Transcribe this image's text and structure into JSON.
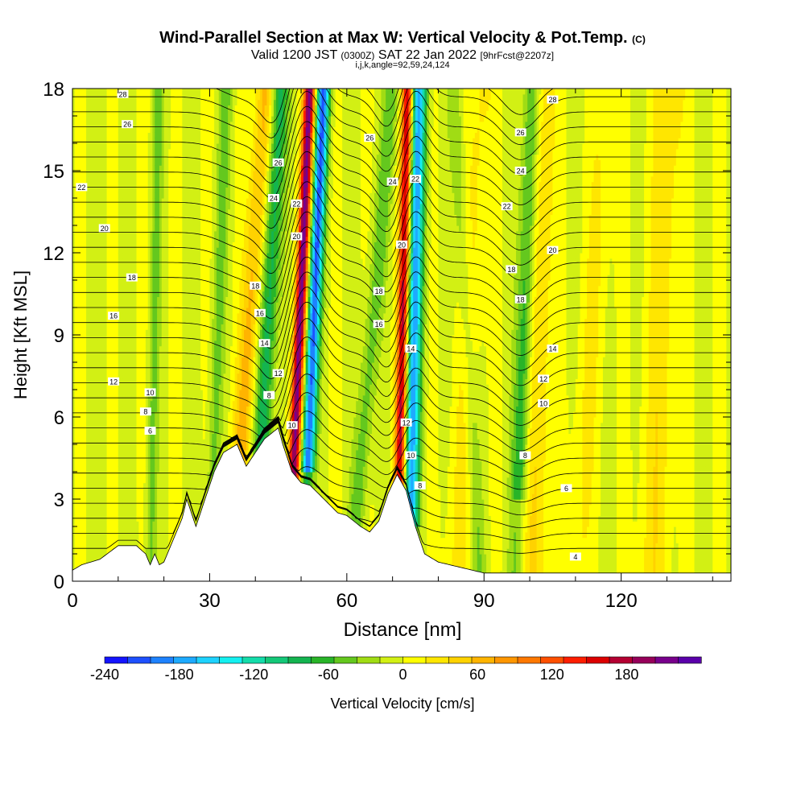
{
  "header": {
    "title": "Wind-Parallel Section at Max W: Vertical Velocity & Pot.Temp.",
    "copyright": "(C)",
    "valid_prefix": "Valid 1200 JST",
    "valid_utc": "(0300Z)",
    "valid_suffix": "SAT 22 Jan 2022",
    "forecast": "[9hrFcst@2207z]",
    "indices": "i,j,k,angle=92,59,24,124"
  },
  "chart_data": {
    "type": "heatmap",
    "xlabel": "Distance [nm]",
    "ylabel": "Height [Kft MSL]",
    "xlim": [
      0,
      144
    ],
    "ylim": [
      0,
      18
    ],
    "x_ticks": [
      0,
      30,
      60,
      90,
      120
    ],
    "y_ticks": [
      0,
      3,
      6,
      9,
      12,
      15,
      18
    ],
    "grid": false,
    "colorbar": {
      "label": "Vertical Velocity [cm/s]",
      "min": -240,
      "max": 220,
      "step": 20,
      "tick_values": [
        -240,
        -180,
        -120,
        -60,
        0,
        60,
        120,
        180
      ],
      "colors": [
        "#1414ff",
        "#1e50ff",
        "#1e82ff",
        "#1eaaff",
        "#1ed2ff",
        "#14f0f0",
        "#14dcaa",
        "#14c878",
        "#14b450",
        "#28b428",
        "#64c81e",
        "#a0dc14",
        "#d2f014",
        "#ffff00",
        "#ffe600",
        "#ffd200",
        "#ffb400",
        "#ff9600",
        "#ff7800",
        "#ff5000",
        "#ff1e00",
        "#dc0000",
        "#b40032",
        "#96005a",
        "#78008c",
        "#5a00aa"
      ],
      "position": "bottom"
    },
    "terrain_kft": [
      {
        "x": 0,
        "h": 0.4
      },
      {
        "x": 2,
        "h": 0.6
      },
      {
        "x": 6,
        "h": 0.8
      },
      {
        "x": 10,
        "h": 1.3
      },
      {
        "x": 14,
        "h": 1.3
      },
      {
        "x": 16,
        "h": 1.0
      },
      {
        "x": 17,
        "h": 0.6
      },
      {
        "x": 18,
        "h": 1.0
      },
      {
        "x": 19,
        "h": 0.6
      },
      {
        "x": 20,
        "h": 0.7
      },
      {
        "x": 22,
        "h": 1.5
      },
      {
        "x": 24,
        "h": 2.3
      },
      {
        "x": 25,
        "h": 3.0
      },
      {
        "x": 27,
        "h": 2.0
      },
      {
        "x": 29,
        "h": 3.0
      },
      {
        "x": 31,
        "h": 4.0
      },
      {
        "x": 33,
        "h": 4.7
      },
      {
        "x": 36,
        "h": 5.0
      },
      {
        "x": 38,
        "h": 4.2
      },
      {
        "x": 40,
        "h": 4.7
      },
      {
        "x": 42,
        "h": 5.2
      },
      {
        "x": 45,
        "h": 5.6
      },
      {
        "x": 46,
        "h": 5.0
      },
      {
        "x": 48,
        "h": 4.0
      },
      {
        "x": 50,
        "h": 3.6
      },
      {
        "x": 52,
        "h": 3.5
      },
      {
        "x": 55,
        "h": 3.0
      },
      {
        "x": 58,
        "h": 2.5
      },
      {
        "x": 60,
        "h": 2.4
      },
      {
        "x": 63,
        "h": 2.0
      },
      {
        "x": 65,
        "h": 1.8
      },
      {
        "x": 67,
        "h": 2.2
      },
      {
        "x": 69,
        "h": 3.2
      },
      {
        "x": 71,
        "h": 3.9
      },
      {
        "x": 73,
        "h": 3.3
      },
      {
        "x": 75,
        "h": 2.0
      },
      {
        "x": 77,
        "h": 1.0
      },
      {
        "x": 80,
        "h": 0.7
      },
      {
        "x": 85,
        "h": 0.5
      },
      {
        "x": 90,
        "h": 0.3
      },
      {
        "x": 144,
        "h": 0.3
      }
    ],
    "theta_contour_labels": [
      {
        "x": 11,
        "y": 17.8,
        "text": "28"
      },
      {
        "x": 12,
        "y": 16.7,
        "text": "26"
      },
      {
        "x": 2,
        "y": 14.4,
        "text": "22"
      },
      {
        "x": 7,
        "y": 12.9,
        "text": "20"
      },
      {
        "x": 13,
        "y": 11.1,
        "text": "18"
      },
      {
        "x": 9,
        "y": 9.7,
        "text": "16"
      },
      {
        "x": 9,
        "y": 7.3,
        "text": "12"
      },
      {
        "x": 17,
        "y": 6.9,
        "text": "10"
      },
      {
        "x": 16,
        "y": 6.2,
        "text": "8"
      },
      {
        "x": 17,
        "y": 5.5,
        "text": "6"
      },
      {
        "x": 45,
        "y": 15.3,
        "text": "26"
      },
      {
        "x": 44,
        "y": 14.0,
        "text": "24"
      },
      {
        "x": 49,
        "y": 13.8,
        "text": "22"
      },
      {
        "x": 49,
        "y": 12.6,
        "text": "20"
      },
      {
        "x": 40,
        "y": 10.8,
        "text": "18"
      },
      {
        "x": 41,
        "y": 9.8,
        "text": "16"
      },
      {
        "x": 42,
        "y": 8.7,
        "text": "14"
      },
      {
        "x": 45,
        "y": 7.6,
        "text": "12"
      },
      {
        "x": 43,
        "y": 6.8,
        "text": "8"
      },
      {
        "x": 48,
        "y": 5.7,
        "text": "10"
      },
      {
        "x": 65,
        "y": 16.2,
        "text": "26"
      },
      {
        "x": 70,
        "y": 14.6,
        "text": "24"
      },
      {
        "x": 75,
        "y": 14.7,
        "text": "22"
      },
      {
        "x": 72,
        "y": 12.3,
        "text": "20"
      },
      {
        "x": 67,
        "y": 10.6,
        "text": "18"
      },
      {
        "x": 67,
        "y": 9.4,
        "text": "16"
      },
      {
        "x": 74,
        "y": 8.5,
        "text": "14"
      },
      {
        "x": 73,
        "y": 5.8,
        "text": "12"
      },
      {
        "x": 74,
        "y": 4.6,
        "text": "10"
      },
      {
        "x": 76,
        "y": 3.5,
        "text": "8"
      },
      {
        "x": 105,
        "y": 17.6,
        "text": "28"
      },
      {
        "x": 98,
        "y": 16.4,
        "text": "26"
      },
      {
        "x": 98,
        "y": 15.0,
        "text": "24"
      },
      {
        "x": 95,
        "y": 13.7,
        "text": "22"
      },
      {
        "x": 105,
        "y": 12.1,
        "text": "20"
      },
      {
        "x": 96,
        "y": 11.4,
        "text": "18"
      },
      {
        "x": 98,
        "y": 10.3,
        "text": "18"
      },
      {
        "x": 105,
        "y": 8.5,
        "text": "14"
      },
      {
        "x": 103,
        "y": 7.4,
        "text": "12"
      },
      {
        "x": 103,
        "y": 6.5,
        "text": "10"
      },
      {
        "x": 99,
        "y": 4.6,
        "text": "8"
      },
      {
        "x": 108,
        "y": 3.4,
        "text": "6"
      },
      {
        "x": 110,
        "y": 0.9,
        "text": "4"
      }
    ]
  }
}
